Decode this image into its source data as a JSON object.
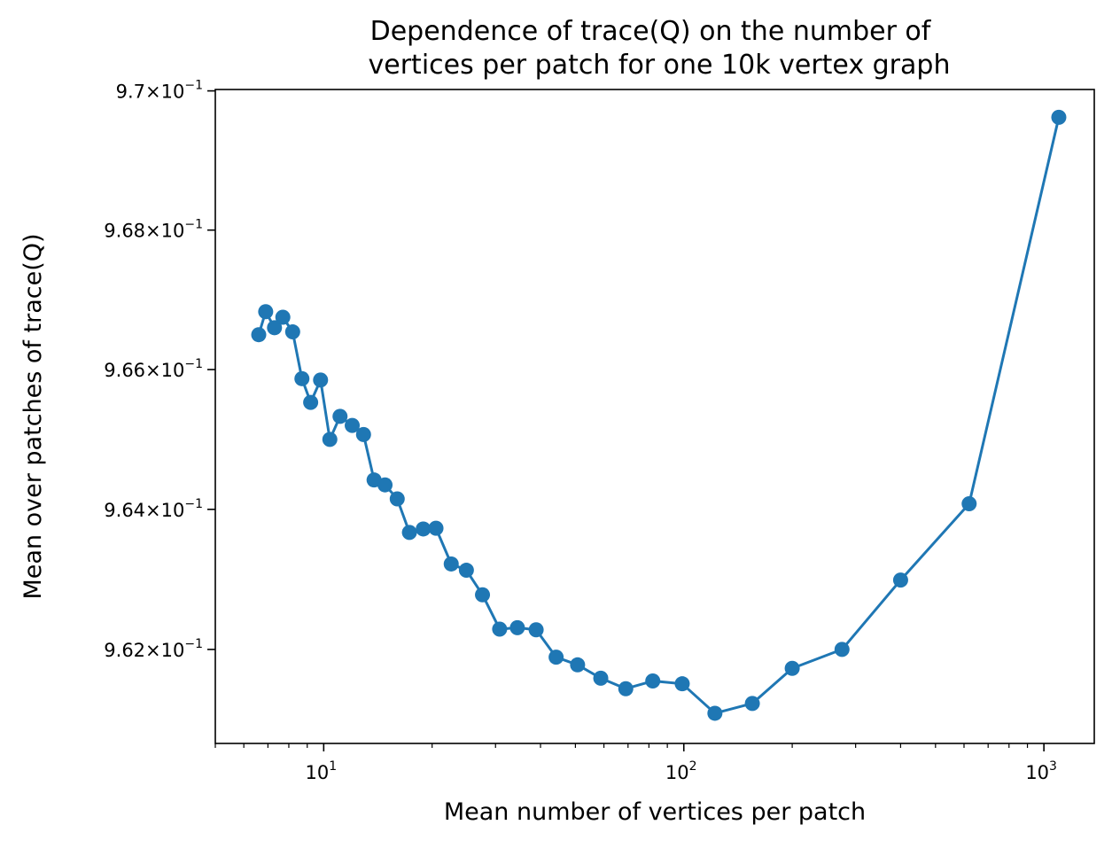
{
  "chart_data": {
    "type": "line",
    "title_lines": [
      "Dependence of trace(Q) on the number of",
      "vertices per patch for one 10k vertex graph"
    ],
    "xlabel": "Mean number of vertices per patch",
    "ylabel": "Mean over patches of trace(Q)",
    "x_scale": "log",
    "y_scale": "log",
    "xlim": [
      5.0,
      1380
    ],
    "ylim": [
      0.96066,
      0.97002
    ],
    "grid": false,
    "legend": "none",
    "x_major_ticks": [
      {
        "value": 10,
        "base": "10",
        "exp": "1"
      },
      {
        "value": 100,
        "base": "10",
        "exp": "2"
      },
      {
        "value": 1000,
        "base": "10",
        "exp": "3"
      }
    ],
    "x_minor_ticks": [
      5,
      6,
      7,
      8,
      9,
      20,
      30,
      40,
      50,
      60,
      70,
      80,
      90,
      200,
      300,
      400,
      500,
      600,
      700,
      800,
      900
    ],
    "y_ticks": [
      {
        "value": 0.962,
        "mantissa": "9.62",
        "base": "10",
        "exp": "−1"
      },
      {
        "value": 0.964,
        "mantissa": "9.64",
        "base": "10",
        "exp": "−1"
      },
      {
        "value": 0.966,
        "mantissa": "9.66",
        "base": "10",
        "exp": "−1"
      },
      {
        "value": 0.968,
        "mantissa": "9.68",
        "base": "10",
        "exp": "−1"
      },
      {
        "value": 0.97,
        "mantissa": "9.7",
        "base": "10",
        "exp": "−1"
      }
    ],
    "series": [
      {
        "color": "#1f77b4",
        "marker": "circle",
        "x": [
          6.6,
          6.9,
          7.3,
          7.7,
          8.2,
          8.7,
          9.2,
          9.8,
          10.4,
          11.1,
          12.0,
          12.9,
          13.8,
          14.8,
          16.0,
          17.3,
          18.9,
          20.5,
          22.6,
          24.9,
          27.6,
          30.8,
          34.5,
          38.9,
          44.2,
          50.7,
          58.8,
          69.0,
          82.0,
          99.0,
          122,
          155,
          200,
          275,
          400,
          620,
          1100
        ],
        "y": [
          0.9665,
          0.96683,
          0.9666,
          0.96675,
          0.96654,
          0.96587,
          0.96553,
          0.96585,
          0.965,
          0.96533,
          0.9652,
          0.96507,
          0.96442,
          0.96435,
          0.96415,
          0.96367,
          0.96372,
          0.96373,
          0.96322,
          0.96313,
          0.96278,
          0.96229,
          0.96231,
          0.96228,
          0.96189,
          0.96178,
          0.96159,
          0.96144,
          0.96155,
          0.96151,
          0.96109,
          0.96123,
          0.96173,
          0.962,
          0.96299,
          0.96408,
          0.96962
        ]
      }
    ]
  }
}
